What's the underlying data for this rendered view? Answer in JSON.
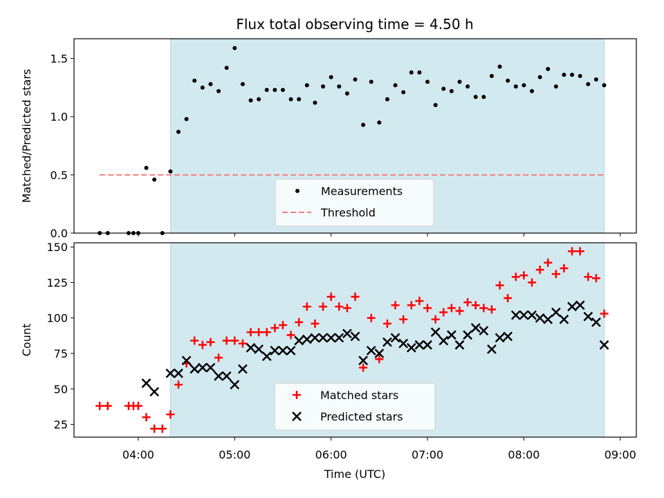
{
  "chart_data": [
    {
      "type": "scatter",
      "title": "Flux total observing time = 4.50 h",
      "ylabel": "Matched/Predicted stars",
      "xlim": [
        "03:20",
        "09:10"
      ],
      "ylim": [
        0,
        1.67
      ],
      "yticks": [
        0.0,
        0.5,
        1.0,
        1.5
      ],
      "ytick_labels": [
        "0.0",
        "0.5",
        "1.0",
        "1.5"
      ],
      "shaded_span": [
        "04:20",
        "08:50"
      ],
      "shade_color": "#d3e9f0",
      "legend_position": "lower-center",
      "series": [
        {
          "name": "Measurements",
          "marker": "dot",
          "color": "#000000",
          "points": [
            [
              "03:36",
              0.0
            ],
            [
              "03:41",
              0.0
            ],
            [
              "03:54",
              0.0
            ],
            [
              "03:57",
              0.0
            ],
            [
              "04:00",
              0.0
            ],
            [
              "04:05",
              0.56
            ],
            [
              "04:10",
              0.46
            ],
            [
              "04:15",
              0.0
            ],
            [
              "04:20",
              0.53
            ],
            [
              "04:25",
              0.87
            ],
            [
              "04:30",
              0.98
            ],
            [
              "04:35",
              1.31
            ],
            [
              "04:40",
              1.25
            ],
            [
              "04:45",
              1.28
            ],
            [
              "04:50",
              1.22
            ],
            [
              "04:55",
              1.42
            ],
            [
              "05:00",
              1.59
            ],
            [
              "05:05",
              1.28
            ],
            [
              "05:10",
              1.14
            ],
            [
              "05:15",
              1.15
            ],
            [
              "05:20",
              1.23
            ],
            [
              "05:25",
              1.23
            ],
            [
              "05:30",
              1.23
            ],
            [
              "05:35",
              1.15
            ],
            [
              "05:40",
              1.15
            ],
            [
              "05:45",
              1.27
            ],
            [
              "05:50",
              1.12
            ],
            [
              "05:55",
              1.26
            ],
            [
              "06:00",
              1.34
            ],
            [
              "06:05",
              1.26
            ],
            [
              "06:10",
              1.2
            ],
            [
              "06:15",
              1.32
            ],
            [
              "06:20",
              0.93
            ],
            [
              "06:25",
              1.3
            ],
            [
              "06:30",
              0.95
            ],
            [
              "06:35",
              1.15
            ],
            [
              "06:40",
              1.27
            ],
            [
              "06:45",
              1.21
            ],
            [
              "06:50",
              1.38
            ],
            [
              "06:55",
              1.38
            ],
            [
              "07:00",
              1.3
            ],
            [
              "07:05",
              1.1
            ],
            [
              "07:10",
              1.24
            ],
            [
              "07:15",
              1.22
            ],
            [
              "07:20",
              1.3
            ],
            [
              "07:25",
              1.26
            ],
            [
              "07:30",
              1.17
            ],
            [
              "07:35",
              1.17
            ],
            [
              "07:40",
              1.35
            ],
            [
              "07:45",
              1.43
            ],
            [
              "07:50",
              1.31
            ],
            [
              "07:55",
              1.26
            ],
            [
              "08:00",
              1.27
            ],
            [
              "08:05",
              1.22
            ],
            [
              "08:10",
              1.34
            ],
            [
              "08:15",
              1.41
            ],
            [
              "08:20",
              1.26
            ],
            [
              "08:25",
              1.36
            ],
            [
              "08:30",
              1.36
            ],
            [
              "08:35",
              1.35
            ],
            [
              "08:40",
              1.28
            ],
            [
              "08:45",
              1.32
            ],
            [
              "08:50",
              1.27
            ]
          ]
        },
        {
          "name": "Threshold",
          "marker": "dashed-line",
          "color": "#f08080",
          "points": [
            [
              "03:36",
              0.5
            ],
            [
              "08:50",
              0.5
            ]
          ]
        }
      ]
    },
    {
      "type": "scatter",
      "xlabel": "Time (UTC)",
      "ylabel": "Count",
      "xlim": [
        "03:20",
        "09:10"
      ],
      "ylim": [
        16,
        153
      ],
      "xticks": [
        "04:00",
        "05:00",
        "06:00",
        "07:00",
        "08:00",
        "09:00"
      ],
      "xtick_labels": [
        "04:00",
        "05:00",
        "06:00",
        "07:00",
        "08:00",
        "09:00"
      ],
      "yticks": [
        25,
        50,
        75,
        100,
        125,
        150
      ],
      "ytick_labels": [
        "25",
        "50",
        "75",
        "100",
        "125",
        "150"
      ],
      "shaded_span": [
        "04:20",
        "08:50"
      ],
      "shade_color": "#d3e9f0",
      "legend_position": "lower-center",
      "series": [
        {
          "name": "Matched stars",
          "marker": "plus",
          "color": "#ff0000",
          "points": [
            [
              "03:36",
              38
            ],
            [
              "03:41",
              38
            ],
            [
              "03:54",
              38
            ],
            [
              "03:57",
              38
            ],
            [
              "04:00",
              38
            ],
            [
              "04:05",
              30
            ],
            [
              "04:10",
              22
            ],
            [
              "04:15",
              22
            ],
            [
              "04:20",
              32
            ],
            [
              "04:25",
              53
            ],
            [
              "04:30",
              68
            ],
            [
              "04:35",
              84
            ],
            [
              "04:40",
              81
            ],
            [
              "04:45",
              83
            ],
            [
              "04:50",
              72
            ],
            [
              "04:55",
              84
            ],
            [
              "05:00",
              84
            ],
            [
              "05:05",
              82
            ],
            [
              "05:10",
              90
            ],
            [
              "05:15",
              90
            ],
            [
              "05:20",
              90
            ],
            [
              "05:25",
              93
            ],
            [
              "05:30",
              95
            ],
            [
              "05:35",
              88
            ],
            [
              "05:40",
              97
            ],
            [
              "05:45",
              108
            ],
            [
              "05:50",
              96
            ],
            [
              "05:55",
              108
            ],
            [
              "06:00",
              115
            ],
            [
              "06:05",
              108
            ],
            [
              "06:10",
              107
            ],
            [
              "06:15",
              115
            ],
            [
              "06:20",
              65
            ],
            [
              "06:25",
              100
            ],
            [
              "06:30",
              71
            ],
            [
              "06:35",
              96
            ],
            [
              "06:40",
              109
            ],
            [
              "06:45",
              99
            ],
            [
              "06:50",
              109
            ],
            [
              "06:55",
              112
            ],
            [
              "07:00",
              107
            ],
            [
              "07:05",
              99
            ],
            [
              "07:10",
              104
            ],
            [
              "07:15",
              107
            ],
            [
              "07:20",
              105
            ],
            [
              "07:25",
              111
            ],
            [
              "07:30",
              109
            ],
            [
              "07:35",
              107
            ],
            [
              "07:40",
              106
            ],
            [
              "07:45",
              123
            ],
            [
              "07:50",
              114
            ],
            [
              "07:55",
              129
            ],
            [
              "08:00",
              130
            ],
            [
              "08:05",
              125
            ],
            [
              "08:10",
              134
            ],
            [
              "08:15",
              139
            ],
            [
              "08:20",
              131
            ],
            [
              "08:25",
              135
            ],
            [
              "08:30",
              147
            ],
            [
              "08:35",
              147
            ],
            [
              "08:40",
              129
            ],
            [
              "08:45",
              128
            ],
            [
              "08:50",
              103
            ]
          ]
        },
        {
          "name": "Predicted stars",
          "marker": "x",
          "color": "#000000",
          "points": [
            [
              "04:05",
              54
            ],
            [
              "04:10",
              48
            ],
            [
              "04:20",
              61
            ],
            [
              "04:25",
              61
            ],
            [
              "04:30",
              70
            ],
            [
              "04:35",
              64
            ],
            [
              "04:40",
              65
            ],
            [
              "04:45",
              65
            ],
            [
              "04:50",
              59
            ],
            [
              "04:55",
              59
            ],
            [
              "05:00",
              53
            ],
            [
              "05:05",
              64
            ],
            [
              "05:10",
              79
            ],
            [
              "05:15",
              78
            ],
            [
              "05:20",
              73
            ],
            [
              "05:25",
              77
            ],
            [
              "05:30",
              77
            ],
            [
              "05:35",
              77
            ],
            [
              "05:40",
              84
            ],
            [
              "05:45",
              85
            ],
            [
              "05:50",
              86
            ],
            [
              "05:55",
              86
            ],
            [
              "06:00",
              86
            ],
            [
              "06:05",
              86
            ],
            [
              "06:10",
              89
            ],
            [
              "06:15",
              87
            ],
            [
              "06:20",
              70
            ],
            [
              "06:25",
              77
            ],
            [
              "06:30",
              75
            ],
            [
              "06:35",
              83
            ],
            [
              "06:40",
              86
            ],
            [
              "06:45",
              82
            ],
            [
              "06:50",
              79
            ],
            [
              "06:55",
              81
            ],
            [
              "07:00",
              81
            ],
            [
              "07:05",
              90
            ],
            [
              "07:10",
              84
            ],
            [
              "07:15",
              88
            ],
            [
              "07:20",
              81
            ],
            [
              "07:25",
              88
            ],
            [
              "07:30",
              93
            ],
            [
              "07:35",
              91
            ],
            [
              "07:40",
              78
            ],
            [
              "07:45",
              86
            ],
            [
              "07:50",
              87
            ],
            [
              "07:55",
              102
            ],
            [
              "08:00",
              102
            ],
            [
              "08:05",
              102
            ],
            [
              "08:10",
              100
            ],
            [
              "08:15",
              99
            ],
            [
              "08:20",
              104
            ],
            [
              "08:25",
              99
            ],
            [
              "08:30",
              108
            ],
            [
              "08:35",
              109
            ],
            [
              "08:40",
              101
            ],
            [
              "08:45",
              97
            ],
            [
              "08:50",
              81
            ]
          ]
        }
      ]
    }
  ]
}
